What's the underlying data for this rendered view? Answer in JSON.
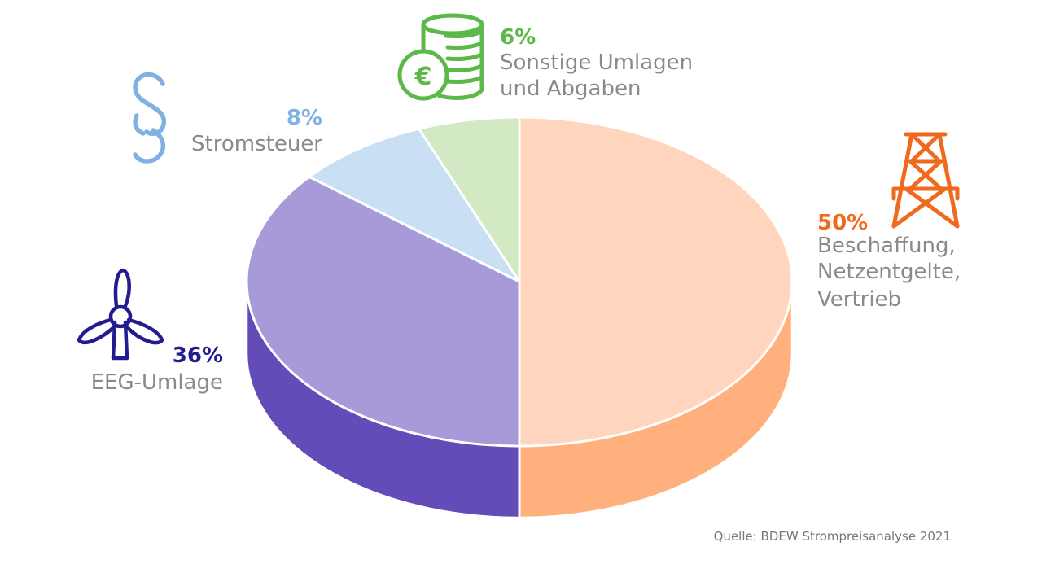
{
  "chart_data": {
    "type": "pie",
    "style": "3d",
    "slices": [
      {
        "label": "Beschaffung, Netzentgelte, Vertrieb",
        "label_lines": [
          "Beschaffung,",
          "Netzentgelte,",
          "Vertrieb"
        ],
        "value": 50,
        "value_label": "50%",
        "top_color": "#ffd6bd",
        "side_color": "#ffb07c",
        "text_color": "#f06a1e",
        "icon": "power-pylon-icon"
      },
      {
        "label": "EEG-Umlage",
        "label_lines": [
          "EEG-Umlage"
        ],
        "value": 36,
        "value_label": "36%",
        "top_color": "#a899d8",
        "side_color": "#634cb7",
        "text_color": "#231c8f",
        "icon": "wind-turbine-icon"
      },
      {
        "label": "Stromsteuer",
        "label_lines": [
          "Stromsteuer"
        ],
        "value": 8,
        "value_label": "8%",
        "top_color": "#c9dff3",
        "side_color": "#9cc2e6",
        "text_color": "#7fb2e3",
        "icon": "paragraph-icon"
      },
      {
        "label": "Sonstige Umlagen und Abgaben",
        "label_lines": [
          "Sonstige Umlagen",
          "und Abgaben"
        ],
        "value": 6,
        "value_label": "6%",
        "top_color": "#d2e9c3",
        "side_color": "#a9d58e",
        "text_color": "#5cb848",
        "icon": "euro-coins-icon"
      }
    ],
    "source": "Quelle: BDEW Strompreisanalyse 2021"
  }
}
